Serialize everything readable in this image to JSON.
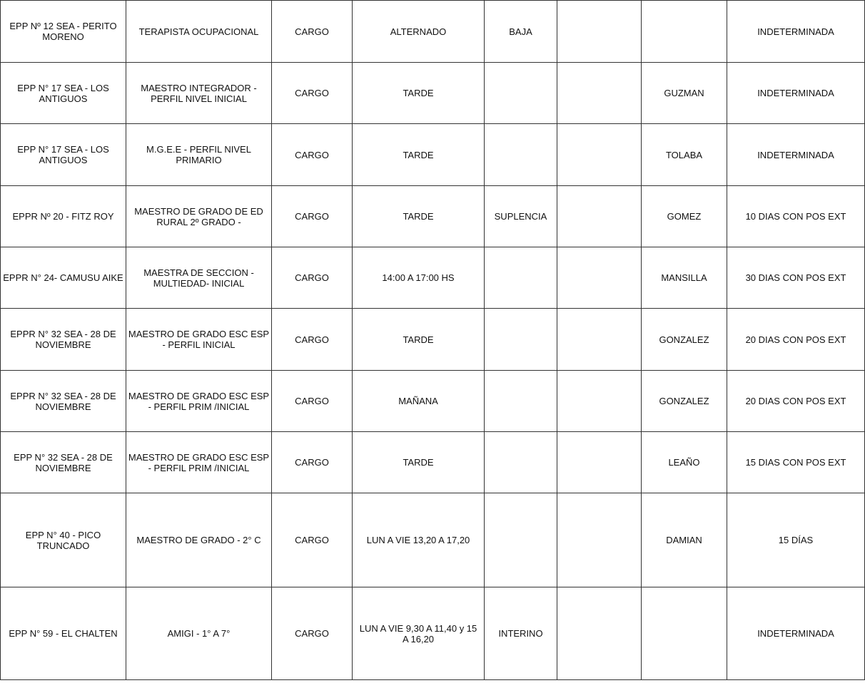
{
  "rows": [
    [
      "EPP Nº 12 SEA - PERITO\nMORENO",
      "TERAPISTA OCUPACIONAL",
      "CARGO",
      "ALTERNADO",
      "BAJA",
      "",
      "",
      "INDETERMINADA"
    ],
    [
      "EPP N° 17 SEA - LOS\nANTIGUOS",
      "MAESTRO INTEGRADOR -\nPERFIL NIVEL INICIAL",
      "CARGO",
      "TARDE",
      "",
      "",
      "GUZMAN",
      "INDETERMINADA"
    ],
    [
      "EPP N° 17 SEA - LOS\nANTIGUOS",
      "M.G.E.E - PERFIL NIVEL\nPRIMARIO",
      "CARGO",
      "TARDE",
      "",
      "",
      "TOLABA",
      "INDETERMINADA"
    ],
    [
      "EPPR Nº 20 - FITZ ROY",
      "MAESTRO DE GRADO DE ED\nRURAL 2º GRADO -",
      "CARGO",
      "TARDE",
      "SUPLENCIA",
      "",
      "GOMEZ",
      "10 DIAS CON POS EXT"
    ],
    [
      "EPPR N° 24- CAMUSU AIKE",
      "MAESTRA DE SECCION -\nMULTIEDAD- INICIAL",
      "CARGO",
      "14:00 A 17:00 HS",
      "",
      "",
      "MANSILLA",
      "30 DIAS CON POS EXT"
    ],
    [
      "EPPR N° 32 SEA - 28 DE\nNOVIEMBRE",
      "MAESTRO DE GRADO ESC ESP\n- PERFIL INICIAL",
      "CARGO",
      "TARDE",
      "",
      "",
      "GONZALEZ",
      "20 DIAS CON POS EXT"
    ],
    [
      "EPPR N° 32 SEA - 28 DE\nNOVIEMBRE",
      "MAESTRO DE GRADO ESC ESP\n- PERFIL PRIM /INICIAL",
      "CARGO",
      "MAÑANA",
      "",
      "",
      "GONZALEZ",
      "20 DIAS CON POS EXT"
    ],
    [
      "EPP N° 32 SEA - 28 DE\nNOVIEMBRE",
      "MAESTRO DE GRADO ESC ESP\n- PERFIL PRIM /INICIAL",
      "CARGO",
      "TARDE",
      "",
      "",
      "LEAÑO",
      "15 DIAS CON POS EXT"
    ],
    [
      "EPP N° 40 - PICO\nTRUNCADO",
      "MAESTRO DE GRADO - 2° C",
      "CARGO",
      "LUN A VIE 13,20 A 17,20",
      "",
      "",
      "DAMIAN",
      "15 DÍAS"
    ],
    [
      "EPP N° 59 - EL CHALTEN",
      "AMIGI - 1° A 7°",
      "CARGO",
      "LUN A VIE 9,30 A 11,40 y 15\nA 16,20",
      "INTERINO",
      "",
      "",
      "INDETERMINADA"
    ]
  ]
}
